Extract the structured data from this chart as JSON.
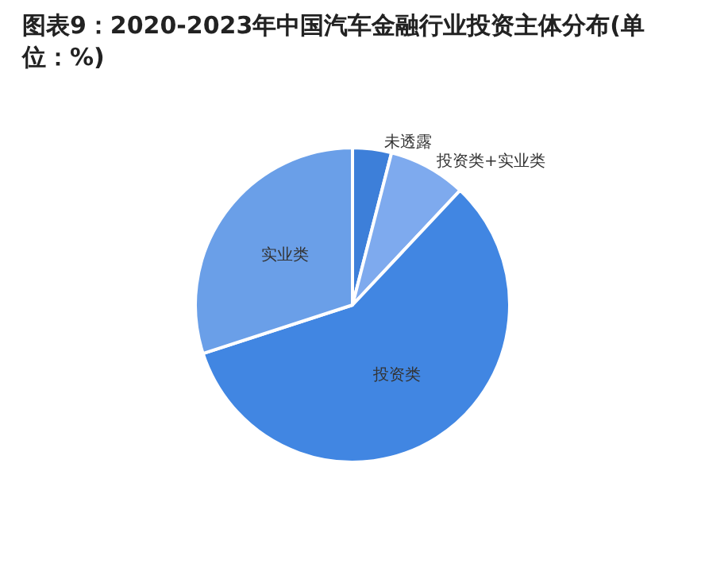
{
  "chart_data": {
    "type": "pie",
    "title": "图表9：2020-2023年中国汽车金融行业投资主体分布(单位：%)",
    "categories": [
      "未透露",
      "投资类+实业类",
      "投资类",
      "实业类"
    ],
    "values": [
      4,
      8,
      58,
      30
    ],
    "colors": [
      "#3d7fd9",
      "#7eaaee",
      "#4186e2",
      "#6a9fe8"
    ],
    "legend": false
  }
}
